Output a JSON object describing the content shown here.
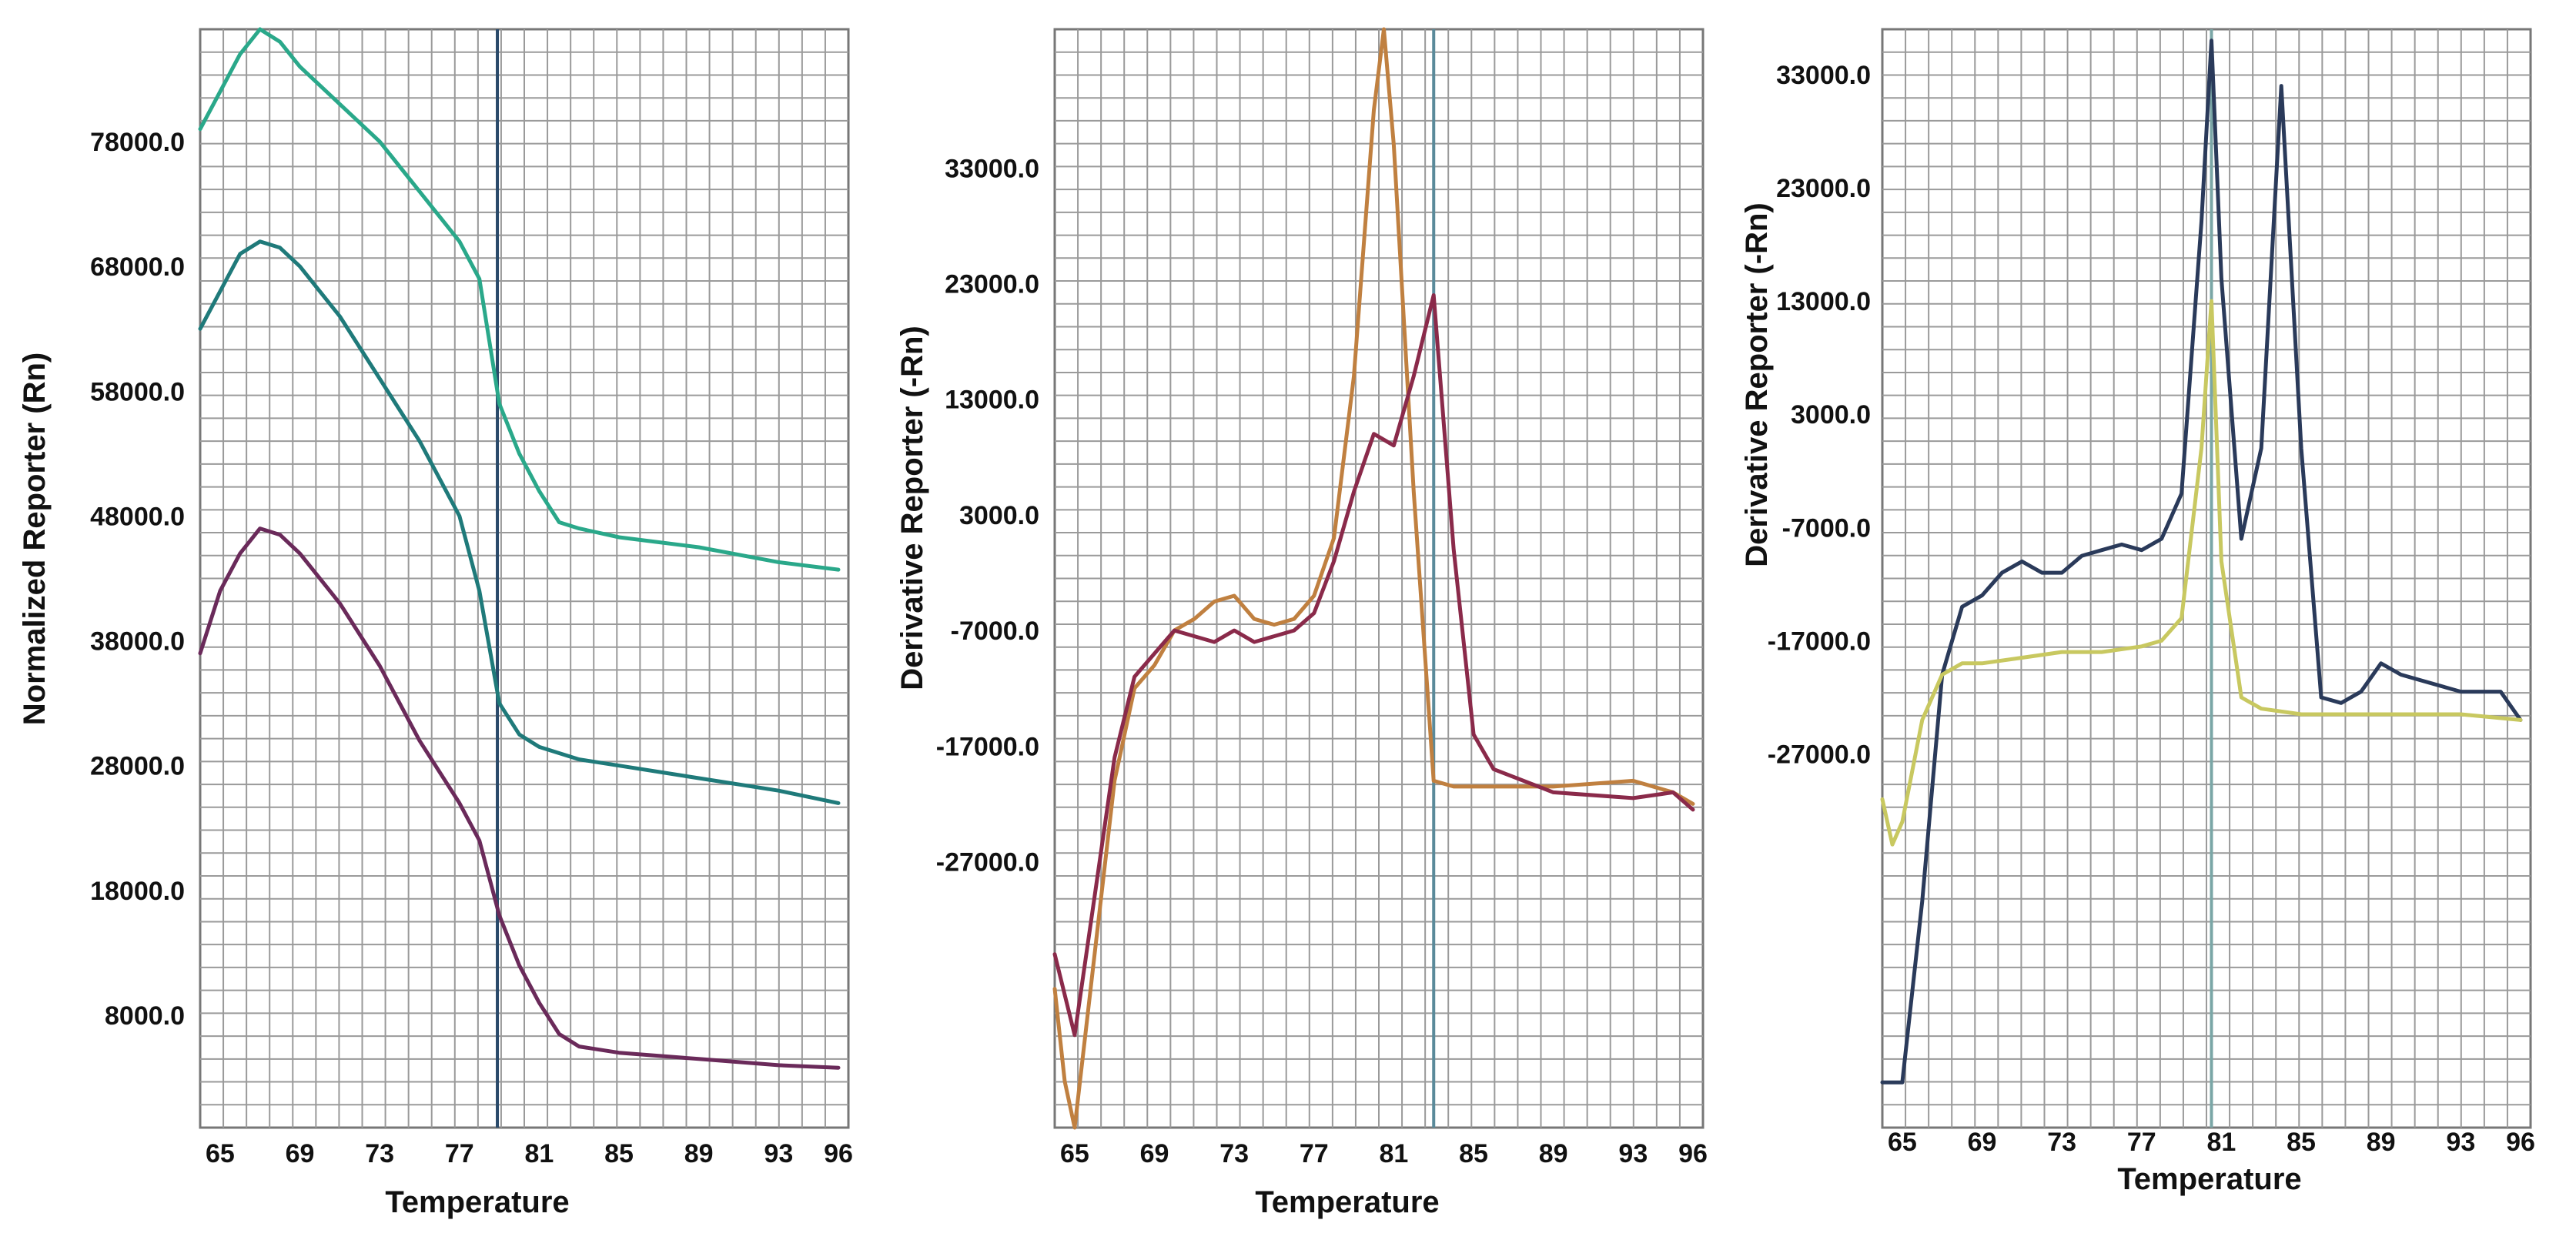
{
  "chart_data": [
    {
      "type": "line",
      "xlabel": "Temperature",
      "ylabel": "Normalized Reporter (Rn)",
      "xlim": [
        64,
        96.5
      ],
      "ylim": [
        -1000,
        87000
      ],
      "x_ticks": [
        65,
        69,
        73,
        77,
        81,
        85,
        89,
        93,
        96
      ],
      "y_ticks": [
        8000,
        18000,
        28000,
        38000,
        48000,
        58000,
        68000,
        78000
      ],
      "y_tick_labels": [
        "8000.0",
        "18000.0",
        "28000.0",
        "38000.0",
        "48000.0",
        "58000.0",
        "68000.0",
        "78000.0"
      ],
      "vline": 78.9,
      "vline_color": "#2a4a6a",
      "grid": true,
      "series": [
        {
          "color": "#2aa88a",
          "points": [
            [
              64,
              79000
            ],
            [
              65,
              82000
            ],
            [
              66,
              85000
            ],
            [
              67,
              87000
            ],
            [
              68,
              86000
            ],
            [
              69,
              84000
            ],
            [
              71,
              81000
            ],
            [
              73,
              78000
            ],
            [
              75,
              74000
            ],
            [
              77,
              70000
            ],
            [
              78,
              67000
            ],
            [
              79,
              57000
            ],
            [
              80,
              53000
            ],
            [
              81,
              50000
            ],
            [
              82,
              47500
            ],
            [
              83,
              47000
            ],
            [
              85,
              46300
            ],
            [
              89,
              45500
            ],
            [
              93,
              44300
            ],
            [
              96,
              43700
            ]
          ]
        },
        {
          "color": "#1f7a7a",
          "points": [
            [
              64,
              63000
            ],
            [
              65,
              66000
            ],
            [
              66,
              69000
            ],
            [
              67,
              70000
            ],
            [
              68,
              69500
            ],
            [
              69,
              68000
            ],
            [
              71,
              64000
            ],
            [
              73,
              59000
            ],
            [
              75,
              54000
            ],
            [
              77,
              48000
            ],
            [
              78,
              42000
            ],
            [
              79,
              33000
            ],
            [
              80,
              30500
            ],
            [
              81,
              29500
            ],
            [
              83,
              28500
            ],
            [
              85,
              28000
            ],
            [
              89,
              27000
            ],
            [
              93,
              26000
            ],
            [
              96,
              25000
            ]
          ]
        },
        {
          "color": "#6a2a5a",
          "points": [
            [
              64,
              37000
            ],
            [
              65,
              42000
            ],
            [
              66,
              45000
            ],
            [
              67,
              47000
            ],
            [
              68,
              46500
            ],
            [
              69,
              45000
            ],
            [
              71,
              41000
            ],
            [
              73,
              36000
            ],
            [
              75,
              30000
            ],
            [
              77,
              25000
            ],
            [
              78,
              22000
            ],
            [
              79,
              16000
            ],
            [
              80,
              12000
            ],
            [
              81,
              9000
            ],
            [
              82,
              6500
            ],
            [
              83,
              5500
            ],
            [
              85,
              5000
            ],
            [
              89,
              4500
            ],
            [
              93,
              4000
            ],
            [
              96,
              3800
            ]
          ]
        }
      ]
    },
    {
      "type": "line",
      "xlabel": "Temperature",
      "ylabel": "Derivative Reporter (-Rn)",
      "xlim": [
        64,
        96.5
      ],
      "ylim": [
        -50000,
        45000
      ],
      "x_ticks": [
        65,
        69,
        73,
        77,
        81,
        85,
        89,
        93,
        96
      ],
      "y_ticks": [
        -27000,
        -17000,
        -7000,
        3000,
        13000,
        23000,
        33000
      ],
      "y_tick_labels": [
        "-27000.0",
        "-17000.0",
        "-7000.0",
        "3000.0",
        "13000.0",
        "23000.0",
        "33000.0"
      ],
      "vline": 83,
      "vline_color": "#5a8a9a",
      "grid": true,
      "series": [
        {
          "color": "#c08040",
          "points": [
            [
              64,
              -38000
            ],
            [
              64.5,
              -46000
            ],
            [
              65,
              -50000
            ],
            [
              66,
              -35000
            ],
            [
              67,
              -20000
            ],
            [
              68,
              -12000
            ],
            [
              69,
              -10000
            ],
            [
              70,
              -7000
            ],
            [
              71,
              -6000
            ],
            [
              72,
              -4500
            ],
            [
              73,
              -4000
            ],
            [
              74,
              -6000
            ],
            [
              75,
              -6500
            ],
            [
              76,
              -6000
            ],
            [
              77,
              -4000
            ],
            [
              78,
              1000
            ],
            [
              79,
              15000
            ],
            [
              80,
              38000
            ],
            [
              80.5,
              45000
            ],
            [
              81,
              35000
            ],
            [
              82,
              5000
            ],
            [
              83,
              -20000
            ],
            [
              84,
              -20500
            ],
            [
              89,
              -20500
            ],
            [
              93,
              -20000
            ],
            [
              95,
              -21000
            ],
            [
              96,
              -22000
            ]
          ]
        },
        {
          "color": "#8a2a4a",
          "points": [
            [
              64,
              -35000
            ],
            [
              65,
              -42000
            ],
            [
              66,
              -30000
            ],
            [
              67,
              -18000
            ],
            [
              68,
              -11000
            ],
            [
              69,
              -9000
            ],
            [
              70,
              -7000
            ],
            [
              71,
              -7500
            ],
            [
              72,
              -8000
            ],
            [
              73,
              -7000
            ],
            [
              74,
              -8000
            ],
            [
              75,
              -7500
            ],
            [
              76,
              -7000
            ],
            [
              77,
              -5500
            ],
            [
              78,
              -1000
            ],
            [
              79,
              5000
            ],
            [
              80,
              10000
            ],
            [
              81,
              9000
            ],
            [
              82,
              15000
            ],
            [
              83,
              22000
            ],
            [
              84,
              0
            ],
            [
              85,
              -16000
            ],
            [
              86,
              -19000
            ],
            [
              89,
              -21000
            ],
            [
              93,
              -21500
            ],
            [
              95,
              -21000
            ],
            [
              96,
              -22500
            ]
          ]
        }
      ]
    },
    {
      "type": "line",
      "xlabel": "Temperature",
      "ylabel": "Derivative Reporter (-Rn)",
      "xlim": [
        64,
        96.5
      ],
      "ylim": [
        -60000,
        37000
      ],
      "x_ticks": [
        65,
        69,
        73,
        77,
        81,
        85,
        89,
        93,
        96
      ],
      "y_ticks": [
        -27000,
        -17000,
        -7000,
        3000,
        13000,
        23000,
        33000
      ],
      "y_tick_labels": [
        "-27000.0",
        "-17000.0",
        "-7000.0",
        "3000.0",
        "13000.0",
        "23000.0",
        "33000.0"
      ],
      "vline": 80.5,
      "vline_color": "#7aa6a6",
      "grid": true,
      "series": [
        {
          "color": "#2a3a5a",
          "points": [
            [
              64,
              -56000
            ],
            [
              65,
              -56000
            ],
            [
              66,
              -40000
            ],
            [
              67,
              -20000
            ],
            [
              68,
              -14000
            ],
            [
              69,
              -13000
            ],
            [
              70,
              -11000
            ],
            [
              71,
              -10000
            ],
            [
              72,
              -11000
            ],
            [
              73,
              -11000
            ],
            [
              74,
              -9500
            ],
            [
              75,
              -9000
            ],
            [
              76,
              -8500
            ],
            [
              77,
              -9000
            ],
            [
              78,
              -8000
            ],
            [
              79,
              -4000
            ],
            [
              80,
              20000
            ],
            [
              80.5,
              36000
            ],
            [
              81,
              15000
            ],
            [
              82,
              -8000
            ],
            [
              83,
              0
            ],
            [
              84,
              32000
            ],
            [
              85,
              0
            ],
            [
              86,
              -22000
            ],
            [
              87,
              -22500
            ],
            [
              88,
              -21500
            ],
            [
              89,
              -19000
            ],
            [
              90,
              -20000
            ],
            [
              93,
              -21500
            ],
            [
              95,
              -21500
            ],
            [
              96,
              -24000
            ]
          ]
        },
        {
          "color": "#c8c860",
          "points": [
            [
              64,
              -31000
            ],
            [
              64.5,
              -35000
            ],
            [
              65,
              -33000
            ],
            [
              66,
              -24000
            ],
            [
              67,
              -20000
            ],
            [
              68,
              -19000
            ],
            [
              69,
              -19000
            ],
            [
              71,
              -18500
            ],
            [
              73,
              -18000
            ],
            [
              75,
              -18000
            ],
            [
              77,
              -17500
            ],
            [
              78,
              -17000
            ],
            [
              79,
              -15000
            ],
            [
              80,
              0
            ],
            [
              80.5,
              13000
            ],
            [
              81,
              -10000
            ],
            [
              82,
              -22000
            ],
            [
              83,
              -23000
            ],
            [
              85,
              -23500
            ],
            [
              89,
              -23500
            ],
            [
              93,
              -23500
            ],
            [
              96,
              -24000
            ]
          ]
        }
      ]
    }
  ]
}
